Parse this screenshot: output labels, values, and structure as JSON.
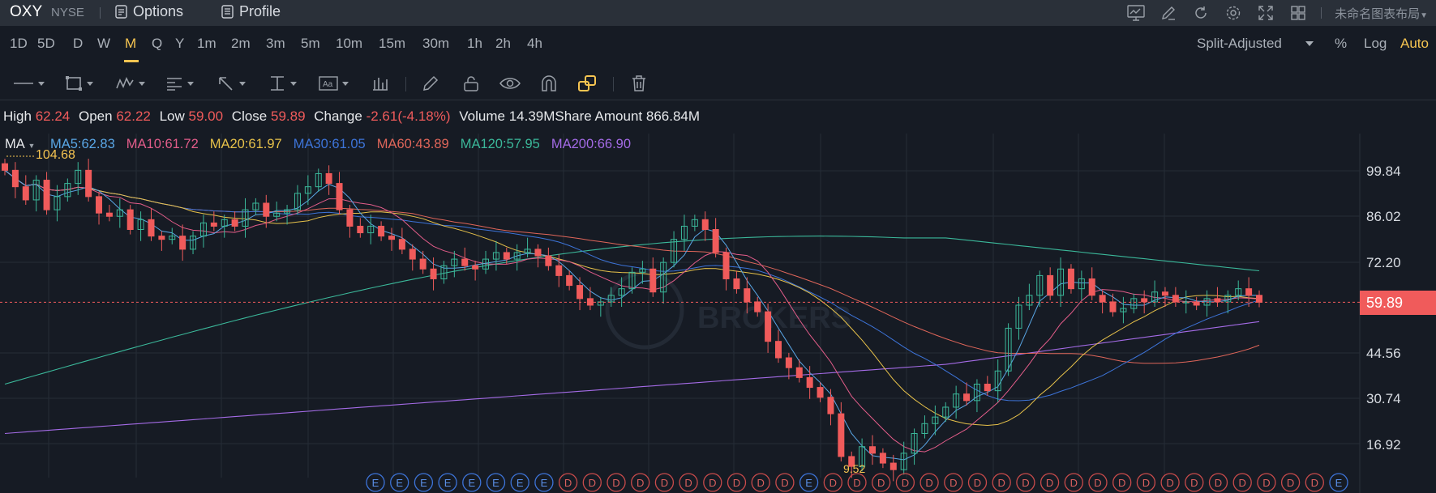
{
  "topbar": {
    "symbol": "OXY",
    "exchange": "NYSE",
    "options": "Options",
    "profile": "Profile",
    "layout_name": "未命名图表布局",
    "icons": [
      "chart-screen-icon",
      "edit-icon",
      "refresh-icon",
      "settings-icon",
      "fullscreen-icon",
      "grid-layout-icon"
    ]
  },
  "timeframes": {
    "items": [
      "1D",
      "5D",
      "D",
      "W",
      "M",
      "Q",
      "Y",
      "1m",
      "2m",
      "3m",
      "5m",
      "10m",
      "15m",
      "30m",
      "1h",
      "2h",
      "4h"
    ],
    "active": "M",
    "adjust": "Split-Adjusted",
    "percent": "%",
    "log": "Log",
    "auto": "Auto"
  },
  "tools": [
    "line-tool-icon",
    "rectangle-tool-icon",
    "pattern-tool-icon",
    "fib-tool-icon",
    "arrow-tool-icon",
    "measure-tool-icon",
    "text-tool-icon",
    "indicator-tool-icon",
    "pencil-icon",
    "lock-icon",
    "eye-icon",
    "magnet-icon",
    "link-icon",
    "trash-icon"
  ],
  "quote": {
    "high_label": "High",
    "high": "62.24",
    "open_label": "Open",
    "open": "62.22",
    "low_label": "Low",
    "low": "59.00",
    "close_label": "Close",
    "close": "59.89",
    "change_label": "Change",
    "change": "-2.61(-4.18%)",
    "volume_label": "Volume",
    "volume": "14.39M",
    "amount_label": "Share Amount",
    "amount": "866.84M"
  },
  "ma": {
    "label": "MA",
    "items": [
      {
        "text": "MA5:62.83",
        "color": "#5aa7e6"
      },
      {
        "text": "MA10:61.72",
        "color": "#e35d8a"
      },
      {
        "text": "MA20:61.97",
        "color": "#e6c14a"
      },
      {
        "text": "MA30:61.05",
        "color": "#3d74d9"
      },
      {
        "text": "MA60:43.89",
        "color": "#e0665a"
      },
      {
        "text": "MA120:57.95",
        "color": "#3bb89a"
      },
      {
        "text": "MA200:66.90",
        "color": "#a46be6"
      }
    ]
  },
  "chart_data": {
    "type": "candlestick",
    "y_ticks": [
      "99.84",
      "86.02",
      "72.20",
      "59.89",
      "44.56",
      "30.74",
      "16.92"
    ],
    "last_price": "59.89",
    "high_marker": "104.68",
    "low_marker": "9.52",
    "watermark": "BROKERS",
    "events": [
      "E",
      "E",
      "E",
      "E",
      "E",
      "E",
      "E",
      "E",
      "D",
      "D",
      "D",
      "D",
      "D",
      "D",
      "D",
      "D",
      "D",
      "D",
      "E",
      "D",
      "D",
      "D",
      "D",
      "D",
      "D",
      "D",
      "D",
      "D",
      "D",
      "D",
      "D",
      "D",
      "D",
      "D",
      "D",
      "D",
      "D",
      "D",
      "D",
      "D",
      "E"
    ],
    "colors": {
      "up": "#3bb89a",
      "down": "#f05b5b"
    },
    "close_series": [
      100,
      95,
      91,
      97,
      88,
      92,
      96,
      100,
      92,
      87,
      86,
      88,
      82,
      85,
      80,
      79,
      80,
      76,
      80,
      84,
      83,
      85,
      83,
      88,
      90,
      86,
      87,
      88,
      93,
      95,
      99,
      96,
      88,
      83,
      81,
      83,
      80,
      79,
      76,
      73,
      70,
      67,
      71,
      73,
      71,
      70,
      73,
      75,
      73,
      75,
      76,
      74,
      71,
      68,
      65,
      61,
      59,
      60,
      62,
      64,
      69,
      70,
      63,
      72,
      79,
      83,
      85,
      82,
      75,
      67,
      64,
      60,
      57,
      48,
      43,
      40,
      37,
      34,
      31,
      26,
      13,
      10,
      16,
      14,
      11,
      9,
      14,
      20,
      23,
      25,
      28,
      32,
      30,
      35,
      33,
      39,
      52,
      59,
      62,
      68,
      62,
      70,
      64,
      67,
      62,
      60,
      57,
      58,
      61,
      60,
      63,
      62,
      60,
      60,
      59,
      61,
      60,
      62,
      64,
      62,
      59.89
    ]
  }
}
